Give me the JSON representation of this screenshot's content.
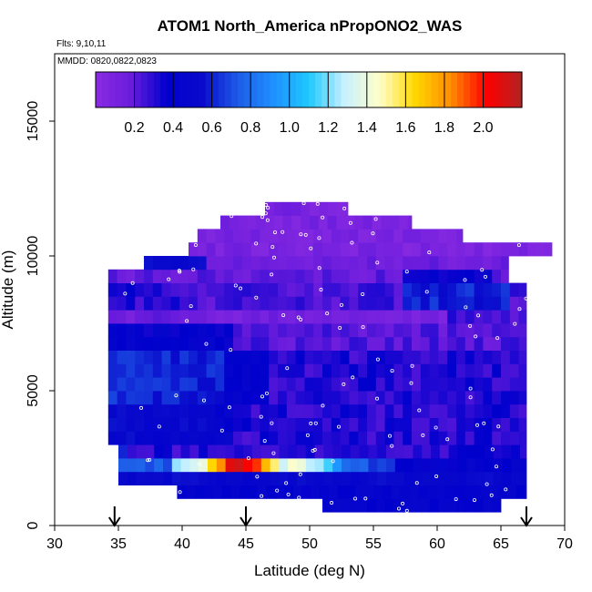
{
  "chart_data": {
    "type": "heatmap",
    "title": "ATOM1 North_America nPropONO2_WAS",
    "flights_label": "Flts: 9,10,11",
    "dates_label": "MMDD: 0820,0822,0823",
    "xlabel": "Latitude (deg N)",
    "ylabel": "Altitude (m)",
    "xlim": [
      30,
      70
    ],
    "ylim": [
      0,
      17500
    ],
    "xticks": [
      "30",
      "35",
      "40",
      "45",
      "50",
      "55",
      "60",
      "65",
      "70"
    ],
    "yticks": [
      "0",
      "5000",
      "10000",
      "15000"
    ],
    "colorbar": {
      "vmin": 0.0,
      "vmax": 2.2,
      "tick_labels": [
        "0.2",
        "0.4",
        "0.6",
        "0.8",
        "1.0",
        "1.2",
        "1.4",
        "1.6",
        "1.8",
        "2.0"
      ],
      "colors": [
        "#8a2be2",
        "#6a1cdc",
        "#0000cd",
        "#0a0acc",
        "#1e5ae6",
        "#1e90ff",
        "#1ec8ff",
        "#c8f0ff",
        "#ffffc8",
        "#ffd700",
        "#ff8c00",
        "#ff0000",
        "#b22222"
      ]
    },
    "flight_arrows_latitude": [
      34.7,
      45,
      67
    ],
    "grid": false,
    "legend": "colorbar-top"
  }
}
